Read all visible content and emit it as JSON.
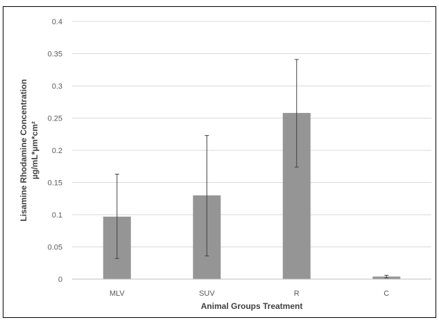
{
  "chart_data": {
    "type": "bar",
    "title": "",
    "xlabel": "Animal Groups Treatment",
    "ylabel_lines": [
      "Lisamine Rhodamine Concentration",
      "µg/mL*µm*cm²"
    ],
    "categories": [
      "MLV",
      "SUV",
      "R",
      "C"
    ],
    "series": [
      {
        "values": [
          0.097,
          0.13,
          0.258,
          0.004
        ],
        "error_low": [
          0.032,
          0.036,
          0.174,
          0.002
        ],
        "error_high": [
          0.163,
          0.223,
          0.341,
          0.006
        ]
      }
    ],
    "ylim": [
      0,
      0.4
    ],
    "yticks": [
      "0",
      "0.05",
      "0.1",
      "0.15",
      "0.2",
      "0.25",
      "0.3",
      "0.35",
      "0.4"
    ],
    "grid": true,
    "legend": "none",
    "colors": {
      "bar": "#959595",
      "gridline": "#d9d9d9",
      "axis": "#bfbfbf",
      "error_bar": "#404040"
    }
  }
}
